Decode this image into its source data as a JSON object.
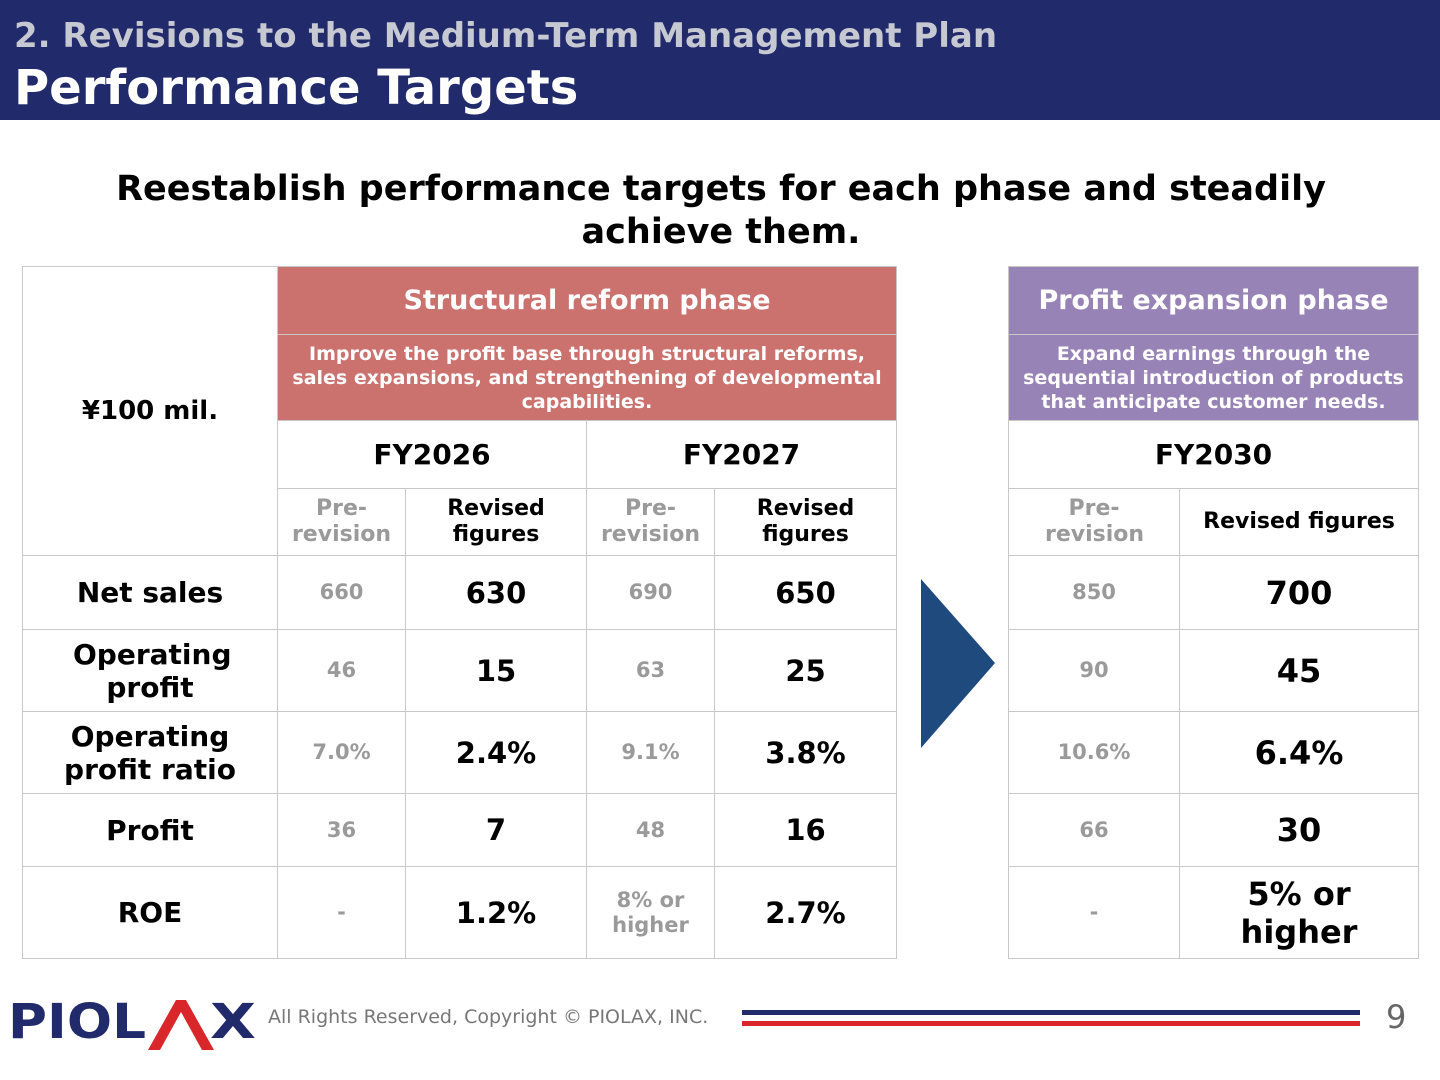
{
  "header": {
    "subtitle": "2. Revisions to the Medium-Term Management Plan",
    "title": "Performance Targets"
  },
  "lead": "Reestablish performance targets for each phase and steadily achieve them.",
  "table": {
    "unit": "¥100 mil.",
    "structural_phase": {
      "title": "Structural reform phase",
      "description": "Improve the profit base through structural reforms, sales expansions, and strengthening of developmental capabilities.",
      "years": [
        "FY2026",
        "FY2027"
      ]
    },
    "profit_phase": {
      "title": "Profit expansion phase",
      "description": "Expand earnings through the sequential introduction of products that anticipate customer needs.",
      "years": [
        "FY2030"
      ]
    },
    "col_pre": "Pre-revision",
    "col_rev": "Revised figures",
    "rows": [
      {
        "label": "Net sales",
        "fy2026_pre": "660",
        "fy2026_rev": "630",
        "fy2027_pre": "690",
        "fy2027_rev": "650",
        "fy2030_pre": "850",
        "fy2030_rev": "700"
      },
      {
        "label": "Operating profit",
        "fy2026_pre": "46",
        "fy2026_rev": "15",
        "fy2027_pre": "63",
        "fy2027_rev": "25",
        "fy2030_pre": "90",
        "fy2030_rev": "45"
      },
      {
        "label": "Operating profit ratio",
        "fy2026_pre": "7.0%",
        "fy2026_rev": "2.4%",
        "fy2027_pre": "9.1%",
        "fy2027_rev": "3.8%",
        "fy2030_pre": "10.6%",
        "fy2030_rev": "6.4%"
      },
      {
        "label": "Profit",
        "fy2026_pre": "36",
        "fy2026_rev": "7",
        "fy2027_pre": "48",
        "fy2027_rev": "16",
        "fy2030_pre": "66",
        "fy2030_rev": "30"
      },
      {
        "label": "ROE",
        "fy2026_pre": "-",
        "fy2026_rev": "1.2%",
        "fy2027_pre": "8% or higher",
        "fy2027_rev": "2.7%",
        "fy2030_pre": "-",
        "fy2030_rev": "5% or higher"
      }
    ]
  },
  "colors": {
    "header_bg": "#212a6b",
    "structural_phase": "#cb726f",
    "profit_phase": "#9883b7",
    "arrow": "#1f4a7d",
    "footer_red": "#d9262a"
  },
  "footer": {
    "logo_text": "PIOLAX",
    "copyright": "All Rights Reserved, Copyright © PIOLAX, INC.",
    "page_number": "9"
  }
}
